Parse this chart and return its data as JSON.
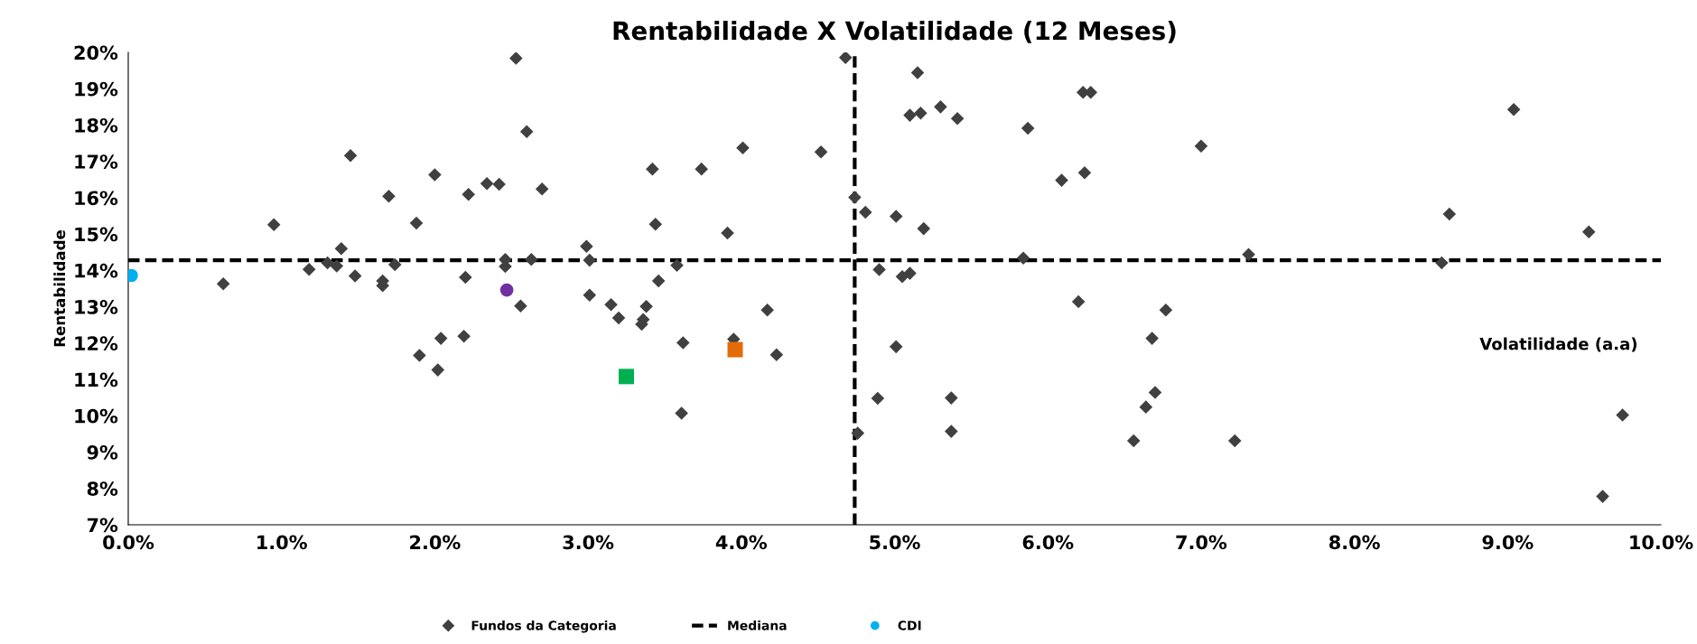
{
  "chart_data": {
    "type": "scatter",
    "title": "Rentabilidade X Volatilidade (12 Meses)",
    "xlabel": "Volatilidade (a.a)",
    "ylabel": "Rentabilidade",
    "xlim": [
      0,
      10
    ],
    "ylim": [
      7,
      20
    ],
    "xticks": [
      {
        "value": 0,
        "label": "0.0%"
      },
      {
        "value": 1,
        "label": "1.0%"
      },
      {
        "value": 2,
        "label": "2.0%"
      },
      {
        "value": 3,
        "label": "3.0%"
      },
      {
        "value": 4,
        "label": "4.0%"
      },
      {
        "value": 5,
        "label": "5.0%"
      },
      {
        "value": 6,
        "label": "6.0%"
      },
      {
        "value": 7,
        "label": "7.0%"
      },
      {
        "value": 8,
        "label": "8.0%"
      },
      {
        "value": 9,
        "label": "9.0%"
      },
      {
        "value": 10,
        "label": "10.0%"
      }
    ],
    "yticks": [
      {
        "value": 7,
        "label": "7%"
      },
      {
        "value": 8,
        "label": "8%"
      },
      {
        "value": 9,
        "label": "9%"
      },
      {
        "value": 10,
        "label": "10%"
      },
      {
        "value": 11,
        "label": "11%"
      },
      {
        "value": 12,
        "label": "12%"
      },
      {
        "value": 13,
        "label": "13%"
      },
      {
        "value": 14,
        "label": "14%"
      },
      {
        "value": 15,
        "label": "15%"
      },
      {
        "value": 16,
        "label": "16%"
      },
      {
        "value": 17,
        "label": "17%"
      },
      {
        "value": 18,
        "label": "18%"
      },
      {
        "value": 19,
        "label": "19%"
      },
      {
        "value": 20,
        "label": "20%"
      }
    ],
    "grid": false,
    "legend": "bottom",
    "series": [
      {
        "name": "Fundos da Categoria",
        "color": "#404040",
        "marker": "diamond",
        "x": [
          0.62,
          0.95,
          1.18,
          1.3,
          1.36,
          1.39,
          1.45,
          1.48,
          1.66,
          1.66,
          1.7,
          1.74,
          1.88,
          1.9,
          2.0,
          2.02,
          2.04,
          2.19,
          2.2,
          2.22,
          2.34,
          2.42,
          2.46,
          2.46,
          2.53,
          2.56,
          2.6,
          2.63,
          2.7,
          2.99,
          3.01,
          3.01,
          3.15,
          3.2,
          3.35,
          3.36,
          3.38,
          3.42,
          3.44,
          3.46,
          3.58,
          3.61,
          3.62,
          3.74,
          3.91,
          3.95,
          4.01,
          4.17,
          4.23,
          4.52,
          4.68,
          4.74,
          4.76,
          4.81,
          4.89,
          4.9,
          5.01,
          5.01,
          5.05,
          5.1,
          5.1,
          5.15,
          5.17,
          5.19,
          5.3,
          5.37,
          5.37,
          5.41,
          5.84,
          5.87,
          6.09,
          6.2,
          6.24,
          6.23,
          6.28,
          7.0,
          7.31,
          6.77,
          6.68,
          6.7,
          6.64,
          6.56,
          7.22,
          8.62,
          8.57,
          9.04,
          9.53,
          9.75,
          9.62
        ],
        "values": [
          13.63,
          15.26,
          14.03,
          14.21,
          14.12,
          14.6,
          17.16,
          13.85,
          13.71,
          13.58,
          16.04,
          14.16,
          15.3,
          11.66,
          16.63,
          11.26,
          12.13,
          12.19,
          13.81,
          16.09,
          16.39,
          16.37,
          14.3,
          14.11,
          19.84,
          13.02,
          17.82,
          14.3,
          16.24,
          14.66,
          14.28,
          13.32,
          13.06,
          12.69,
          12.52,
          12.65,
          13.01,
          16.79,
          15.27,
          13.71,
          14.14,
          10.07,
          12.01,
          16.79,
          15.03,
          12.11,
          17.37,
          12.91,
          11.68,
          17.26,
          19.86,
          16.01,
          9.52,
          15.6,
          10.48,
          14.02,
          15.49,
          11.9,
          13.83,
          13.92,
          18.27,
          19.44,
          18.33,
          15.15,
          18.5,
          10.49,
          9.57,
          18.18,
          14.34,
          17.91,
          16.48,
          13.14,
          16.69,
          18.9,
          18.9,
          17.42,
          14.44,
          12.91,
          12.13,
          10.64,
          10.24,
          9.31,
          9.31,
          15.55,
          14.21,
          18.43,
          15.06,
          10.02,
          7.78
        ]
      },
      {
        "color": "#7030a0",
        "marker": "circle",
        "x": [
          2.47
        ],
        "values": [
          13.46
        ]
      },
      {
        "name": "CDI",
        "color": "#00b0f0",
        "marker": "circle",
        "x": [
          0.02
        ],
        "values": [
          13.86
        ]
      },
      {
        "color": "#00b050",
        "marker": "square",
        "x": [
          3.25
        ],
        "values": [
          11.08
        ]
      },
      {
        "color": "#e36c09",
        "marker": "square",
        "x": [
          3.96
        ],
        "values": [
          11.82
        ]
      }
    ],
    "ref_lines": [
      {
        "axis": "y",
        "value": 14.28,
        "label": "Mediana",
        "color": "#000000",
        "line_style": "dashed"
      },
      {
        "axis": "x",
        "value": 4.74,
        "color": "#000000",
        "line_style": "dashed"
      }
    ]
  }
}
